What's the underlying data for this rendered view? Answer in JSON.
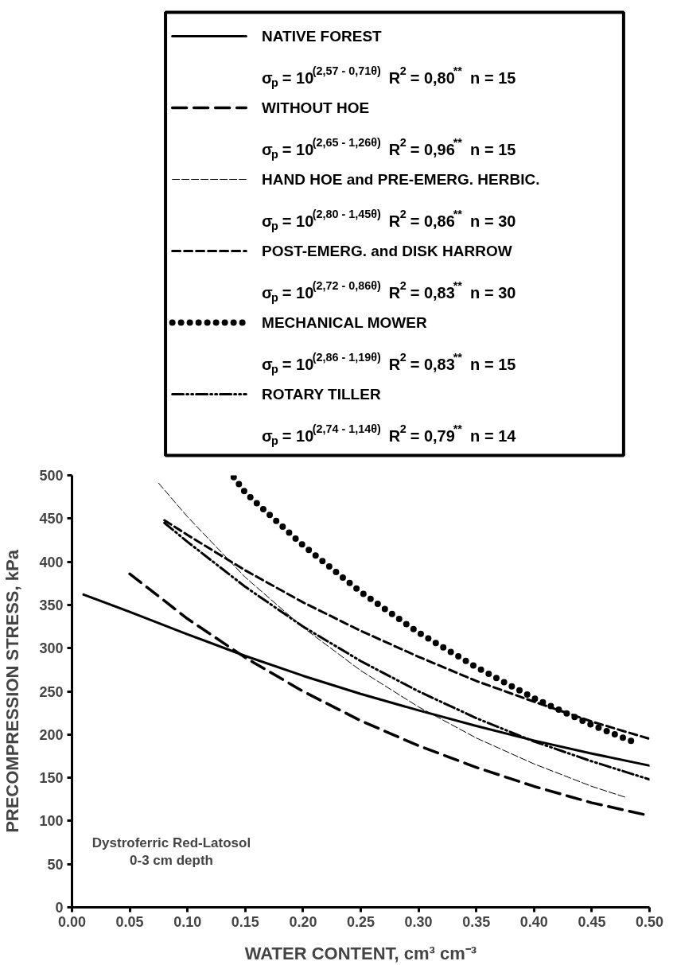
{
  "chart_data": {
    "type": "line",
    "xlabel": "WATER CONTENT, cm³ cm⁻³",
    "ylabel": "PRECOMPRESSION STRESS, kPa",
    "legend": "top",
    "grid": false,
    "xlim": [
      0,
      0.5
    ],
    "ylim": [
      0,
      500
    ],
    "xticks": [
      {
        "value": 0,
        "label": "0.00"
      },
      {
        "value": 0.05,
        "label": "0.05"
      },
      {
        "value": 0.1,
        "label": "0.10"
      },
      {
        "value": 0.15,
        "label": "0.15"
      },
      {
        "value": 0.2,
        "label": "0.20"
      },
      {
        "value": 0.25,
        "label": "0.25"
      },
      {
        "value": 0.3,
        "label": "0.30"
      },
      {
        "value": 0.35,
        "label": "0.35"
      },
      {
        "value": 0.4,
        "label": "0.40"
      },
      {
        "value": 0.45,
        "label": "0.45"
      },
      {
        "value": 0.5,
        "label": "0.50"
      }
    ],
    "yticks": [
      0,
      50,
      100,
      150,
      200,
      250,
      300,
      350,
      400,
      450,
      500
    ],
    "series": [
      {
        "name": "NATIVE FOREST",
        "color": "#000000",
        "line_style": "solid",
        "x": [
          0.01,
          0.05,
          0.1,
          0.15,
          0.2,
          0.25,
          0.3,
          0.35,
          0.4,
          0.45,
          0.5
        ],
        "values": [
          362,
          342,
          316,
          291,
          268,
          247,
          228,
          210,
          193,
          178,
          164
        ]
      },
      {
        "name": "WITHOUT HOE",
        "color": "#000000",
        "line_style": "longdash",
        "x": [
          0.05,
          0.1,
          0.15,
          0.2,
          0.25,
          0.3,
          0.35,
          0.4,
          0.45,
          0.5
        ],
        "values": [
          386,
          334,
          289,
          250,
          216,
          187,
          162,
          140,
          121,
          106
        ]
      },
      {
        "name": "HAND HOE and PRE-EMERG. HERBIC.",
        "color": "#000000",
        "line_style": "thindash",
        "x": [
          0.075,
          0.1,
          0.15,
          0.2,
          0.25,
          0.3,
          0.35,
          0.4,
          0.45,
          0.48
        ],
        "values": [
          491,
          452,
          382,
          324,
          274,
          232,
          196,
          166,
          140,
          127
        ]
      },
      {
        "name": "POST-EMERG. and DISK HARROW",
        "color": "#000000",
        "line_style": "dashed",
        "x": [
          0.08,
          0.1,
          0.15,
          0.2,
          0.25,
          0.3,
          0.35,
          0.4,
          0.45,
          0.5
        ],
        "values": [
          448,
          431,
          390,
          353,
          320,
          290,
          262,
          238,
          215,
          195
        ]
      },
      {
        "name": "MECHANICAL MOWER",
        "color": "#000000",
        "line_style": "dotted",
        "x": [
          0.14,
          0.15,
          0.2,
          0.25,
          0.3,
          0.35,
          0.4,
          0.45,
          0.485
        ],
        "values": [
          498,
          480,
          419,
          365,
          318,
          278,
          242,
          211,
          192
        ]
      },
      {
        "name": "ROTARY TILLER",
        "color": "#000000",
        "line_style": "dashdotdot",
        "x": [
          0.08,
          0.1,
          0.15,
          0.2,
          0.25,
          0.3,
          0.35,
          0.4,
          0.45,
          0.5
        ],
        "values": [
          445,
          423,
          371,
          325,
          285,
          250,
          219,
          192,
          169,
          148
        ]
      }
    ],
    "annotations": [
      "σ$_{p}$ = 10$^{(2,57 - 0,71θ)}$  R$^{2}$ = 0,80$^{**}$  n = 15",
      "σ$_{p}$ = 10$^{(2,65 - 1,26θ)}$  R$^{2}$ = 0,96$^{**}$  n = 15",
      "σ$_{p}$ = 10$^{(2,80 - 1,45θ)}$  R$^{2}$ = 0,86$^{**}$  n = 30",
      "σ$_{p}$ = 10$^{(2,72 - 0,86θ)}$  R$^{2}$ = 0,83$^{**}$  n = 30",
      "σ$_{p}$ = 10$^{(2,86 - 1,19θ)}$  R$^{2}$ = 0,83$^{**}$  n = 15",
      "σ$_{p}$ = 10$^{(2,74 - 1,14θ)}$  R$^{2}$ = 0,79$^{**}$  n = 14",
      "Dystroferric Red-Latosol\n0-3 cm depth"
    ]
  }
}
